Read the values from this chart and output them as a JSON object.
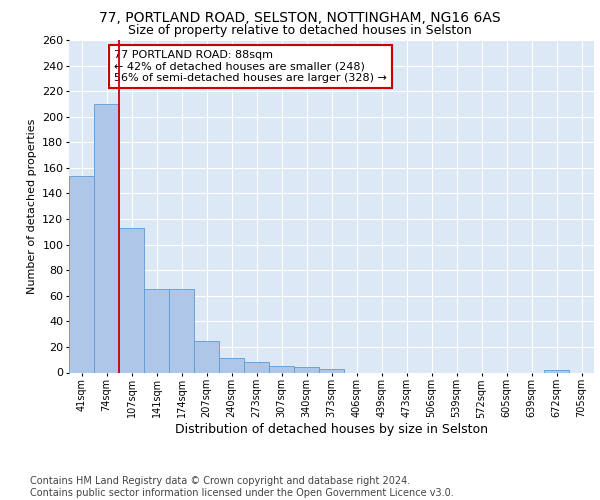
{
  "title_line1": "77, PORTLAND ROAD, SELSTON, NOTTINGHAM, NG16 6AS",
  "title_line2": "Size of property relative to detached houses in Selston",
  "xlabel": "Distribution of detached houses by size in Selston",
  "ylabel": "Number of detached properties",
  "bar_labels": [
    "41sqm",
    "74sqm",
    "107sqm",
    "141sqm",
    "174sqm",
    "207sqm",
    "240sqm",
    "273sqm",
    "307sqm",
    "340sqm",
    "373sqm",
    "406sqm",
    "439sqm",
    "473sqm",
    "506sqm",
    "539sqm",
    "572sqm",
    "605sqm",
    "639sqm",
    "672sqm",
    "705sqm"
  ],
  "bar_values": [
    154,
    210,
    113,
    65,
    65,
    25,
    11,
    8,
    5,
    4,
    3,
    0,
    0,
    0,
    0,
    0,
    0,
    0,
    0,
    2,
    0
  ],
  "bar_color": "#aec6e8",
  "bar_edge_color": "#5b9bd5",
  "background_color": "#dce8f5",
  "grid_color": "#ffffff",
  "annotation_text": "77 PORTLAND ROAD: 88sqm\n← 42% of detached houses are smaller (248)\n56% of semi-detached houses are larger (328) →",
  "annotation_box_color": "#ffffff",
  "annotation_box_edge": "#cc0000",
  "vline_color": "#cc0000",
  "vline_x_index": 1.5,
  "ylim": [
    0,
    260
  ],
  "yticks": [
    0,
    20,
    40,
    60,
    80,
    100,
    120,
    140,
    160,
    180,
    200,
    220,
    240,
    260
  ],
  "footnote": "Contains HM Land Registry data © Crown copyright and database right 2024.\nContains public sector information licensed under the Open Government Licence v3.0.",
  "title_fontsize": 10,
  "subtitle_fontsize": 9,
  "annotation_fontsize": 8,
  "footnote_fontsize": 7,
  "ylabel_fontsize": 8,
  "xlabel_fontsize": 9
}
